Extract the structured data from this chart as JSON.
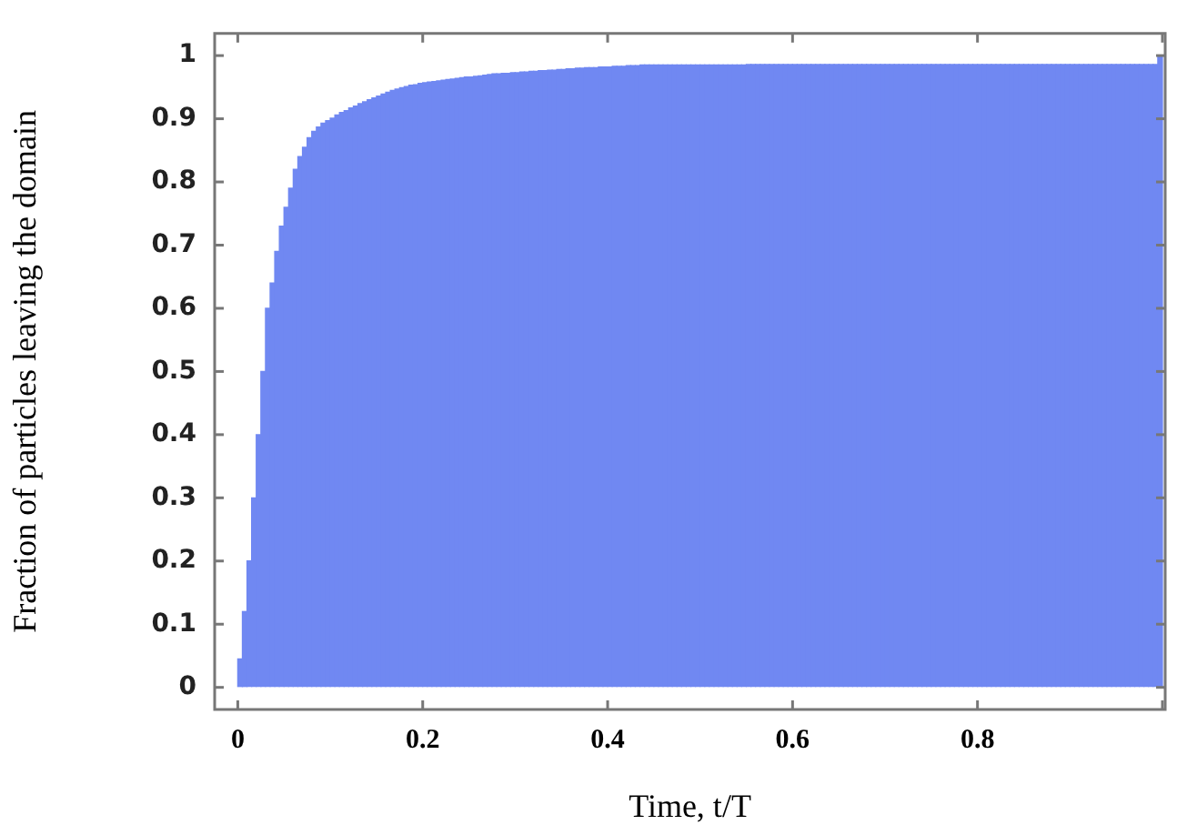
{
  "chart_data": {
    "type": "histogram",
    "xlabel": "Time, t/T",
    "ylabel": "Fraction of particles leaving the domain",
    "bins": [
      0,
      0.005,
      0.01,
      0.015,
      0.02,
      0.025,
      0.03,
      0.035,
      0.04,
      0.045,
      0.05,
      0.055,
      0.06,
      0.065,
      0.07,
      0.075,
      0.08,
      0.085,
      0.09,
      0.095,
      0.1,
      0.105,
      0.11,
      0.115,
      0.12,
      0.125,
      0.13,
      0.135,
      0.14,
      0.145,
      0.15,
      0.155,
      0.16,
      0.165,
      0.17,
      0.175,
      0.18,
      0.185,
      0.19,
      0.195,
      0.2,
      0.205,
      0.21,
      0.215,
      0.22,
      0.225,
      0.23,
      0.235,
      0.24,
      0.245,
      0.25,
      0.255,
      0.26,
      0.265,
      0.27,
      0.275,
      0.28,
      0.285,
      0.29,
      0.295,
      0.3,
      0.305,
      0.31,
      0.315,
      0.32,
      0.325,
      0.33,
      0.335,
      0.34,
      0.345,
      0.35,
      0.355,
      0.36,
      0.365,
      0.37,
      0.375,
      0.38,
      0.385,
      0.39,
      0.395,
      0.4,
      0.405,
      0.41,
      0.415,
      0.42,
      0.425,
      0.43,
      0.435,
      0.44,
      0.445,
      0.45,
      0.455,
      0.46,
      0.465,
      0.47,
      0.475,
      0.48,
      0.485,
      0.49,
      0.495,
      0.5,
      0.505,
      0.51,
      0.515,
      0.52,
      0.525,
      0.53,
      0.535,
      0.54,
      0.545,
      0.55,
      0.555,
      0.56,
      0.565,
      0.57,
      0.575,
      0.58,
      0.585,
      0.59,
      0.595,
      0.6,
      0.605,
      0.61,
      0.615,
      0.62,
      0.625,
      0.63,
      0.635,
      0.64,
      0.645,
      0.65,
      0.655,
      0.66,
      0.665,
      0.67,
      0.675,
      0.68,
      0.685,
      0.69,
      0.695,
      0.7,
      0.705,
      0.71,
      0.715,
      0.72,
      0.725,
      0.73,
      0.735,
      0.74,
      0.745,
      0.75,
      0.755,
      0.76,
      0.765,
      0.77,
      0.775,
      0.78,
      0.785,
      0.79,
      0.795,
      0.8,
      0.805,
      0.81,
      0.815,
      0.82,
      0.825,
      0.83,
      0.835,
      0.84,
      0.845,
      0.85,
      0.855,
      0.86,
      0.865,
      0.87,
      0.875,
      0.88,
      0.885,
      0.89,
      0.895,
      0.9,
      0.905,
      0.91,
      0.915,
      0.92,
      0.925,
      0.93,
      0.935,
      0.94,
      0.945,
      0.95,
      0.955,
      0.96,
      0.965,
      0.97,
      0.975,
      0.98,
      0.985,
      0.99,
      0.995,
      1
    ],
    "values": [
      0.045,
      0.12,
      0.2,
      0.3,
      0.4,
      0.5,
      0.6,
      0.64,
      0.69,
      0.73,
      0.76,
      0.79,
      0.82,
      0.84,
      0.855,
      0.87,
      0.88,
      0.887,
      0.893,
      0.897,
      0.901,
      0.906,
      0.91,
      0.913,
      0.917,
      0.92,
      0.924,
      0.927,
      0.93,
      0.933,
      0.936,
      0.939,
      0.942,
      0.945,
      0.947,
      0.949,
      0.951,
      0.953,
      0.954,
      0.956,
      0.957,
      0.958,
      0.959,
      0.96,
      0.961,
      0.962,
      0.963,
      0.964,
      0.965,
      0.966,
      0.966,
      0.967,
      0.968,
      0.969,
      0.97,
      0.971,
      0.971,
      0.972,
      0.972,
      0.973,
      0.973,
      0.974,
      0.974,
      0.975,
      0.975,
      0.976,
      0.976,
      0.977,
      0.977,
      0.978,
      0.978,
      0.979,
      0.979,
      0.98,
      0.98,
      0.981,
      0.981,
      0.981,
      0.982,
      0.982,
      0.982,
      0.983,
      0.983,
      0.983,
      0.984,
      0.984,
      0.984,
      0.985,
      0.985,
      0.985,
      0.985,
      0.985,
      0.985,
      0.985,
      0.985,
      0.985,
      0.985,
      0.985,
      0.985,
      0.985,
      0.985,
      0.985,
      0.985,
      0.985,
      0.985,
      0.985,
      0.985,
      0.985,
      0.985,
      0.985,
      0.986,
      0.986,
      0.986,
      0.986,
      0.986,
      0.986,
      0.986,
      0.986,
      0.986,
      0.986,
      0.986,
      0.986,
      0.986,
      0.986,
      0.986,
      0.986,
      0.986,
      0.986,
      0.986,
      0.986,
      0.986,
      0.986,
      0.986,
      0.986,
      0.986,
      0.986,
      0.986,
      0.986,
      0.986,
      0.986,
      0.986,
      0.986,
      0.986,
      0.986,
      0.986,
      0.986,
      0.986,
      0.986,
      0.986,
      0.986,
      0.986,
      0.986,
      0.986,
      0.986,
      0.986,
      0.986,
      0.986,
      0.986,
      0.986,
      0.986,
      0.986,
      0.986,
      0.986,
      0.986,
      0.986,
      0.986,
      0.986,
      0.986,
      0.986,
      0.986,
      0.986,
      0.986,
      0.986,
      0.986,
      0.986,
      0.986,
      0.986,
      0.986,
      0.986,
      0.986,
      0.986,
      0.986,
      0.986,
      0.986,
      0.986,
      0.986,
      0.986,
      0.986,
      0.986,
      0.986,
      0.986,
      0.986,
      0.986,
      0.986,
      0.986,
      0.986,
      0.986,
      0.986,
      0.986,
      0.999
    ],
    "color": "#7088f2",
    "xlim": [
      -0.025,
      1.003
    ],
    "xticks": [
      0,
      0.2,
      0.4,
      0.6,
      0.8,
      {
        "value": 1,
        "label": null
      }
    ],
    "ylim": [
      -0.035,
      1.035
    ],
    "yticks": [
      0,
      0.1,
      0.2,
      0.3,
      0.4,
      0.5,
      0.6,
      0.7,
      0.8,
      0.9,
      1
    ],
    "grid": false,
    "legend": false
  }
}
